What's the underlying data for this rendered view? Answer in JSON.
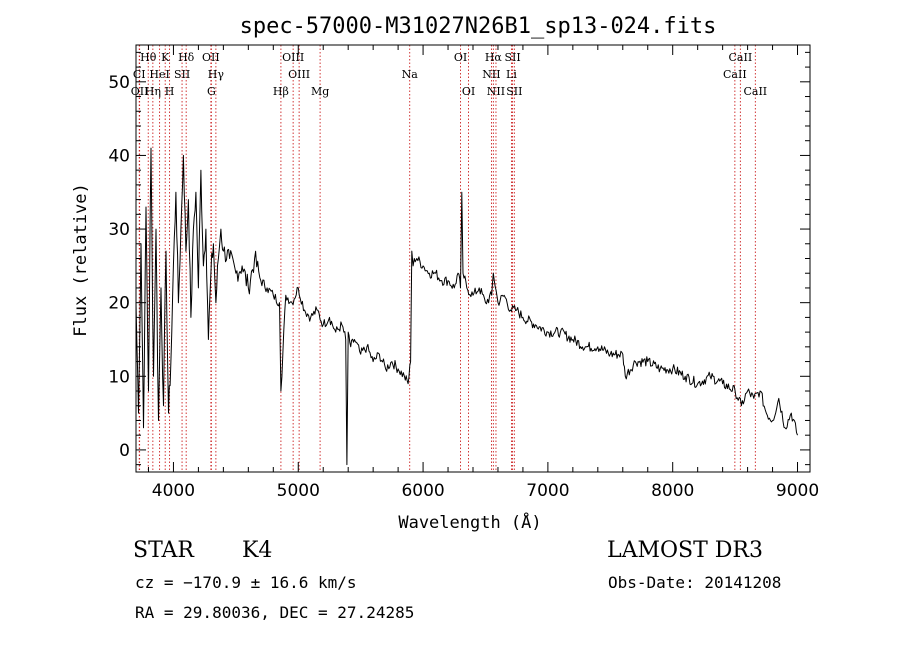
{
  "chart_data": {
    "type": "line",
    "title": "spec-57000-M31027N26B1_sp13-024.fits",
    "xlabel": "Wavelength (Å)",
    "ylabel": "Flux (relative)",
    "xlim": [
      3700,
      9100
    ],
    "ylim": [
      -3,
      55
    ],
    "x_ticks": [
      4000,
      5000,
      6000,
      7000,
      8000,
      9000
    ],
    "y_ticks": [
      0,
      10,
      20,
      30,
      40,
      50
    ],
    "grid": false,
    "series": [
      {
        "name": "spectrum",
        "x": [
          3700,
          3720,
          3740,
          3760,
          3780,
          3800,
          3820,
          3840,
          3860,
          3880,
          3900,
          3920,
          3940,
          3960,
          3980,
          4000,
          4020,
          4040,
          4060,
          4080,
          4100,
          4120,
          4140,
          4160,
          4180,
          4200,
          4220,
          4240,
          4260,
          4280,
          4300,
          4320,
          4340,
          4360,
          4380,
          4400,
          4450,
          4500,
          4550,
          4600,
          4650,
          4700,
          4750,
          4800,
          4850,
          4861,
          4900,
          4950,
          5000,
          5050,
          5100,
          5150,
          5200,
          5250,
          5300,
          5350,
          5380,
          5390,
          5400,
          5420,
          5450,
          5500,
          5550,
          5600,
          5650,
          5700,
          5750,
          5800,
          5850,
          5880,
          5900,
          5910,
          5920,
          5930,
          5950,
          6000,
          6050,
          6100,
          6150,
          6200,
          6250,
          6280,
          6300,
          6310,
          6320,
          6350,
          6400,
          6450,
          6500,
          6550,
          6563,
          6600,
          6650,
          6700,
          6750,
          6800,
          6900,
          7000,
          7100,
          7200,
          7300,
          7400,
          7500,
          7600,
          7620,
          7700,
          7800,
          7900,
          8000,
          8100,
          8200,
          8300,
          8400,
          8500,
          8550,
          8600,
          8650,
          8700,
          8750,
          8800,
          8850,
          8900,
          8950,
          9000
        ],
        "y": [
          20,
          5,
          28,
          3,
          33,
          8,
          41,
          10,
          30,
          4,
          22,
          6,
          27,
          5,
          12,
          25,
          35,
          20,
          30,
          40,
          27,
          34,
          18,
          30,
          35,
          22,
          38,
          25,
          30,
          15,
          24,
          28,
          20,
          26,
          30,
          27,
          26,
          24,
          25,
          22,
          26,
          23,
          22,
          21,
          20,
          8,
          21,
          20,
          22,
          19,
          18,
          19,
          17,
          18,
          16,
          17,
          15,
          -2,
          16,
          14,
          15,
          13,
          14,
          12,
          13,
          11,
          12,
          11,
          10,
          9,
          12,
          27,
          25,
          26,
          26,
          25,
          24,
          24,
          23,
          23,
          22,
          24,
          22,
          35,
          24,
          22,
          21,
          22,
          20,
          21,
          24,
          20,
          21,
          19,
          19,
          18,
          17,
          16,
          16,
          15,
          14,
          14,
          13,
          13,
          10,
          12,
          12,
          11,
          11,
          10,
          9,
          10,
          9,
          8,
          6,
          8,
          7,
          8,
          5,
          4,
          7,
          3,
          5,
          2
        ]
      }
    ],
    "lines": [
      {
        "label": "Hθ",
        "x": 3798,
        "row": 1
      },
      {
        "label": "K",
        "x": 3934,
        "row": 1
      },
      {
        "label": "Hδ",
        "x": 4102,
        "row": 1
      },
      {
        "label": "OII",
        "x": 4300,
        "row": 1
      },
      {
        "label": "OIII",
        "x": 4959,
        "row": 1
      },
      {
        "label": "OI",
        "x": 6300,
        "row": 1
      },
      {
        "label": "Hα",
        "x": 6563,
        "row": 1
      },
      {
        "label": "SII",
        "x": 6717,
        "row": 1
      },
      {
        "label": "CaII",
        "x": 8542,
        "row": 1
      },
      {
        "label": "CI",
        "x": 3726,
        "row": 2
      },
      {
        "label": "HeI",
        "x": 3889,
        "row": 2
      },
      {
        "label": "SII",
        "x": 4069,
        "row": 2
      },
      {
        "label": "Hγ",
        "x": 4340,
        "row": 2
      },
      {
        "label": "OIII",
        "x": 5007,
        "row": 2
      },
      {
        "label": "Na",
        "x": 5893,
        "row": 2
      },
      {
        "label": "NII",
        "x": 6548,
        "row": 2
      },
      {
        "label": "Li",
        "x": 6708,
        "row": 2
      },
      {
        "label": "CaII",
        "x": 8498,
        "row": 2
      },
      {
        "label": "OII",
        "x": 3729,
        "row": 3
      },
      {
        "label": "Hη",
        "x": 3835,
        "row": 3
      },
      {
        "label": "H",
        "x": 3969,
        "row": 3
      },
      {
        "label": "G",
        "x": 4304,
        "row": 3
      },
      {
        "label": "Hβ",
        "x": 4861,
        "row": 3
      },
      {
        "label": "Mg",
        "x": 5175,
        "row": 3
      },
      {
        "label": "OI",
        "x": 6364,
        "row": 3
      },
      {
        "label": "NII",
        "x": 6584,
        "row": 3
      },
      {
        "label": "SII",
        "x": 6731,
        "row": 3
      },
      {
        "label": "CaII",
        "x": 8662,
        "row": 3
      }
    ]
  },
  "info": {
    "class": "STAR",
    "subclass": "K4",
    "survey": "LAMOST DR3",
    "cz": "cz = −170.9 ± 16.6 km/s",
    "obs_date": "Obs-Date: 20141208",
    "coords": "RA =  29.80036, DEC =  27.24285"
  }
}
